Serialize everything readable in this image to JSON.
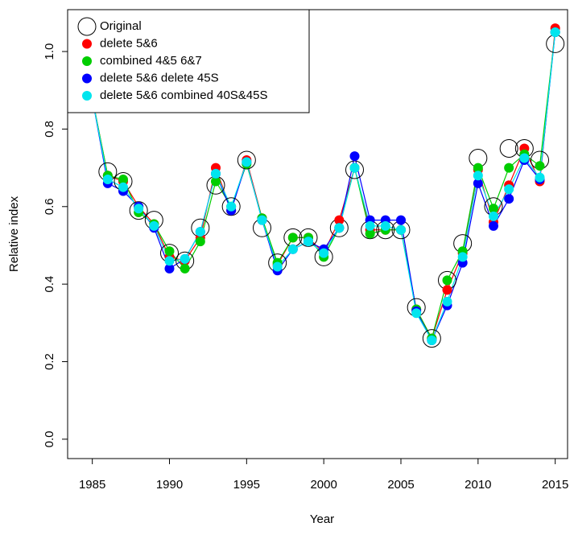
{
  "chart_data": {
    "type": "line",
    "x_label": "Year",
    "y_label": "Relative index",
    "x": [
      1984,
      1985,
      1986,
      1987,
      1988,
      1989,
      1990,
      1991,
      1992,
      1993,
      1994,
      1995,
      1996,
      1997,
      1998,
      1999,
      2000,
      2001,
      2002,
      2003,
      2004,
      2005,
      2006,
      2007,
      2008,
      2009,
      2010,
      2011,
      2012,
      2013,
      2014,
      2015
    ],
    "series": [
      {
        "name": "Original",
        "color": "#000000",
        "marker": "open-circle",
        "line": false,
        "values": [
          1.06,
          0.88,
          0.69,
          0.665,
          0.59,
          0.565,
          0.48,
          0.46,
          0.545,
          0.655,
          0.6,
          0.72,
          0.545,
          0.455,
          0.52,
          0.52,
          0.47,
          0.545,
          0.695,
          0.54,
          0.54,
          0.54,
          0.34,
          0.26,
          0.41,
          0.505,
          0.725,
          0.6,
          0.75,
          0.75,
          0.72,
          1.02
        ]
      },
      {
        "name": "delete 5&6",
        "color": "#ff0000",
        "marker": "filled-circle",
        "line": true,
        "values": [
          1.06,
          0.88,
          0.68,
          0.665,
          0.6,
          0.555,
          0.47,
          0.46,
          0.52,
          0.7,
          0.59,
          0.72,
          0.57,
          0.45,
          0.52,
          0.52,
          0.48,
          0.565,
          0.7,
          0.54,
          0.54,
          0.54,
          0.335,
          0.26,
          0.385,
          0.48,
          0.695,
          0.56,
          0.655,
          0.75,
          0.665,
          1.06
        ]
      },
      {
        "name": "combined 4&5 6&7",
        "color": "#00cd00",
        "marker": "filled-circle",
        "line": true,
        "values": [
          1.06,
          0.88,
          0.68,
          0.67,
          0.585,
          0.555,
          0.485,
          0.44,
          0.51,
          0.665,
          0.6,
          0.71,
          0.57,
          0.455,
          0.52,
          0.52,
          0.47,
          0.545,
          0.7,
          0.53,
          0.54,
          0.54,
          0.335,
          0.26,
          0.41,
          0.485,
          0.7,
          0.595,
          0.7,
          0.735,
          0.705,
          1.05
        ]
      },
      {
        "name": "delete 5&6 delete 45S",
        "color": "#0000ff",
        "marker": "filled-circle",
        "line": true,
        "values": [
          1.06,
          0.88,
          0.66,
          0.64,
          0.6,
          0.545,
          0.44,
          0.465,
          0.535,
          0.685,
          0.59,
          0.715,
          0.565,
          0.435,
          0.49,
          0.51,
          0.49,
          0.545,
          0.73,
          0.565,
          0.565,
          0.565,
          0.33,
          0.255,
          0.345,
          0.455,
          0.66,
          0.55,
          0.62,
          0.72,
          0.67,
          1.05
        ]
      },
      {
        "name": "delete 5&6 combined 40S&45S",
        "color": "#00e5ee",
        "marker": "filled-circle",
        "line": true,
        "values": [
          1.06,
          0.88,
          0.67,
          0.65,
          0.595,
          0.55,
          0.46,
          0.465,
          0.535,
          0.685,
          0.6,
          0.715,
          0.565,
          0.445,
          0.49,
          0.51,
          0.48,
          0.545,
          0.7,
          0.55,
          0.55,
          0.54,
          0.325,
          0.255,
          0.355,
          0.47,
          0.68,
          0.575,
          0.645,
          0.725,
          0.675,
          1.05
        ]
      }
    ],
    "xlim": [
      1983.4,
      2015.8
    ],
    "xticks": [
      1985,
      1990,
      1995,
      2000,
      2005,
      2010,
      2015
    ],
    "ylim": [
      -0.05,
      1.108
    ],
    "yticks": [
      {
        "value": 0,
        "label": "0.0"
      },
      0.2,
      0.4,
      0.6,
      0.8,
      {
        "value": 1,
        "label": "1.0"
      }
    ],
    "legend": "top-left"
  }
}
